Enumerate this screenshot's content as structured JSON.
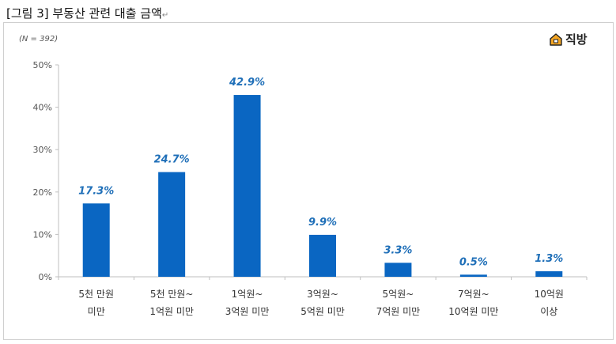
{
  "figure": {
    "caption": "[그림 3] 부동산 관련 대출 금액",
    "sample_note": "(N = 392)",
    "logo_text": "직방"
  },
  "colors": {
    "bar": "#0a66c2",
    "label": "#1f6fb8",
    "axis": "#bfbfbf",
    "tick_text": "#555555",
    "category_text": "#333333"
  },
  "chart_data": {
    "type": "bar",
    "title": "",
    "xlabel": "",
    "ylabel": "",
    "ylim": [
      0,
      50
    ],
    "y_ticks": [
      "0%",
      "10%",
      "20%",
      "30%",
      "40%",
      "50%"
    ],
    "grid": false,
    "categories": [
      [
        "5천 만원",
        "미만"
      ],
      [
        "5천 만원~",
        "1억원 미만"
      ],
      [
        "1억원~",
        "3억원 미만"
      ],
      [
        "3억원~",
        "5억원 미만"
      ],
      [
        "5억원~",
        "7억원 미만"
      ],
      [
        "7억원~",
        "10억원 미만"
      ],
      [
        "10억원",
        "이상"
      ]
    ],
    "values": [
      17.3,
      24.7,
      42.9,
      9.9,
      3.3,
      0.5,
      1.3
    ],
    "value_labels": [
      "17.3%",
      "24.7%",
      "42.9%",
      "9.9%",
      "3.3%",
      "0.5%",
      "1.3%"
    ]
  }
}
